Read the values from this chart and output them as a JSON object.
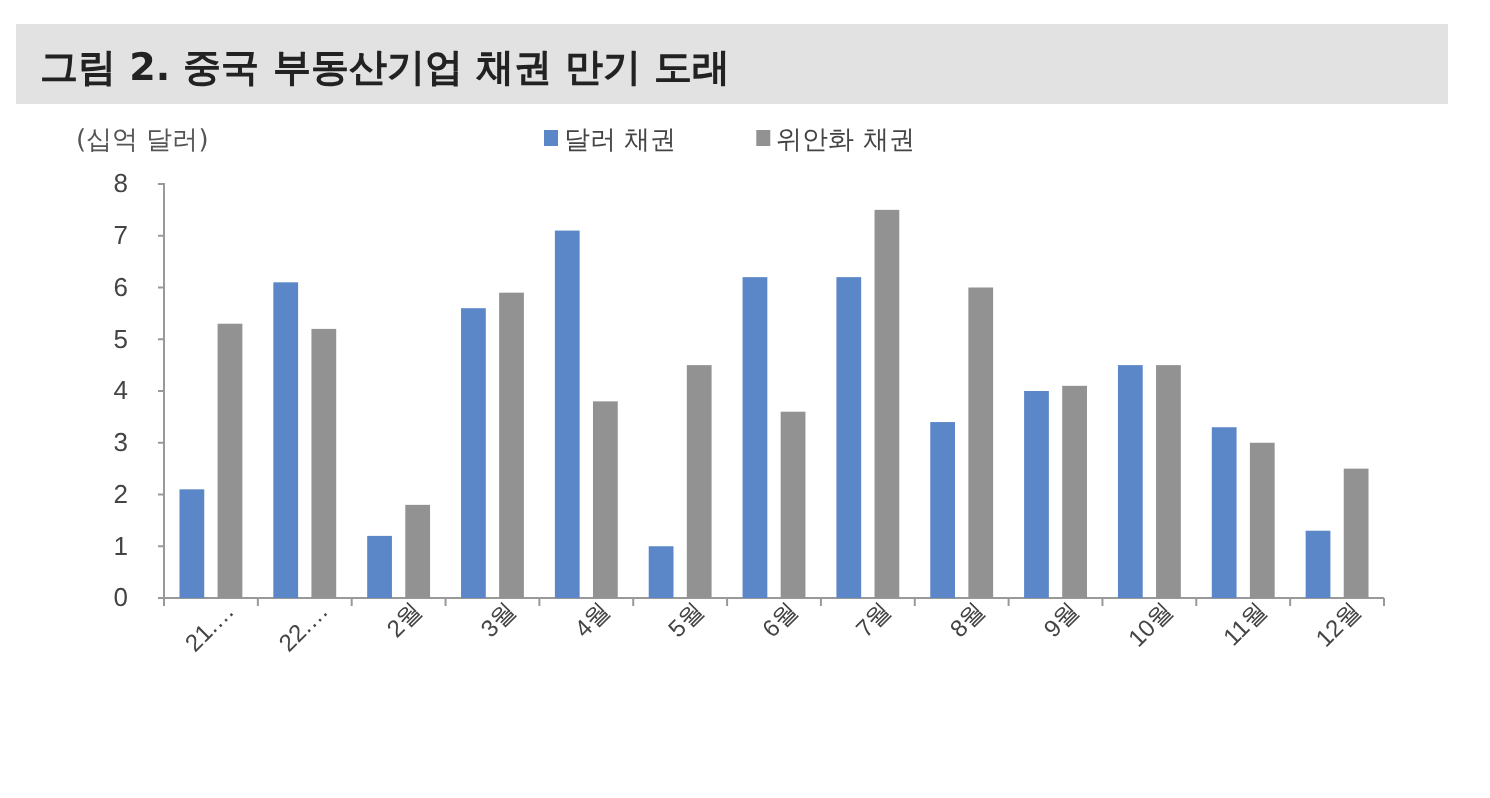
{
  "chart_data": {
    "type": "bar",
    "title": "그림 2. 중국 부동산기업 채권 만기 도래",
    "ylabel": "(십억 달러)",
    "categories": [
      "21.…",
      "22.…",
      "2월",
      "3월",
      "4월",
      "5월",
      "6월",
      "7월",
      "8월",
      "9월",
      "10월",
      "11월",
      "12월"
    ],
    "series": [
      {
        "name": "달러 채권",
        "color": "#5b87c9",
        "values": [
          2.1,
          6.1,
          1.2,
          5.6,
          7.1,
          1.0,
          6.2,
          6.2,
          3.4,
          4.0,
          4.5,
          3.3,
          1.3
        ]
      },
      {
        "name": "위안화 채권",
        "color": "#929292",
        "values": [
          5.3,
          5.2,
          1.8,
          5.9,
          3.8,
          4.5,
          3.6,
          7.5,
          6.0,
          4.1,
          4.5,
          3.0,
          2.5
        ]
      }
    ],
    "ylim": [
      0,
      8
    ],
    "yticks": [
      0,
      1,
      2,
      3,
      4,
      5,
      6,
      7,
      8
    ],
    "grid": false,
    "legend": "top"
  }
}
